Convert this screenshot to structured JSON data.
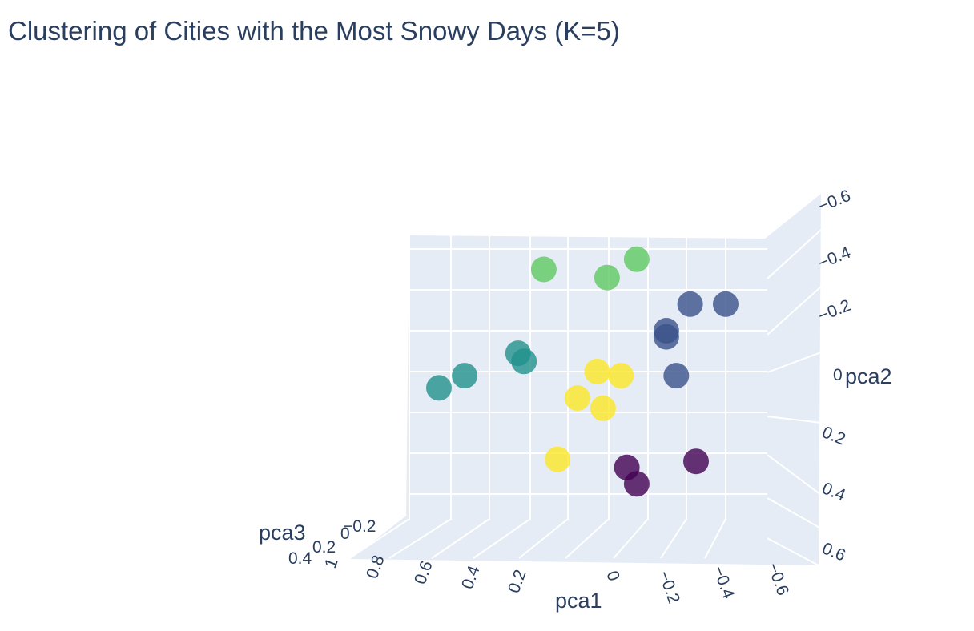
{
  "chart_data": {
    "type": "scatter",
    "title": "Clustering of Cities with the Most Snowy Days (K=5)",
    "axes": {
      "x": {
        "title": "pca1",
        "ticks": [
          "1",
          "0.8",
          "0.6",
          "0.4",
          "0.2",
          "0",
          "−0.2",
          "−0.4",
          "−0.6"
        ]
      },
      "y": {
        "title": "pca2",
        "ticks": [
          "−0.6",
          "−0.4",
          "−0.2",
          "0",
          "0.2",
          "0.4",
          "0.6"
        ]
      },
      "z": {
        "title": "pca3",
        "ticks": [
          "−0.2",
          "0",
          "0.2",
          "0.4"
        ]
      }
    },
    "background_color": "#e5ecf6",
    "cluster_colors": [
      "#440154",
      "#3b528b",
      "#21918c",
      "#5ec962",
      "#fde725"
    ],
    "clusters": [
      {
        "cluster": 0,
        "points": [
          {
            "x": -0.15,
            "y": 0.55
          },
          {
            "x": -0.1,
            "y": 0.47
          },
          {
            "x": -0.45,
            "y": 0.44
          }
        ]
      },
      {
        "cluster": 1,
        "points": [
          {
            "x": -0.6,
            "y": -0.33
          },
          {
            "x": -0.42,
            "y": -0.33
          },
          {
            "x": -0.3,
            "y": -0.2
          },
          {
            "x": -0.3,
            "y": -0.17
          },
          {
            "x": -0.35,
            "y": 0.02
          }
        ]
      },
      {
        "cluster": 2,
        "points": [
          {
            "x": 0.85,
            "y": 0.08
          },
          {
            "x": 0.72,
            "y": 0.02
          },
          {
            "x": 0.45,
            "y": -0.09
          },
          {
            "x": 0.42,
            "y": -0.05
          }
        ]
      },
      {
        "cluster": 3,
        "points": [
          {
            "x": 0.32,
            "y": -0.5
          },
          {
            "x": 0.0,
            "y": -0.46
          },
          {
            "x": -0.15,
            "y": -0.55
          }
        ]
      },
      {
        "cluster": 4,
        "points": [
          {
            "x": 0.05,
            "y": 0.0
          },
          {
            "x": -0.07,
            "y": 0.02
          },
          {
            "x": 0.15,
            "y": 0.13
          },
          {
            "x": 0.02,
            "y": 0.18
          },
          {
            "x": 0.25,
            "y": 0.43
          }
        ]
      }
    ]
  }
}
